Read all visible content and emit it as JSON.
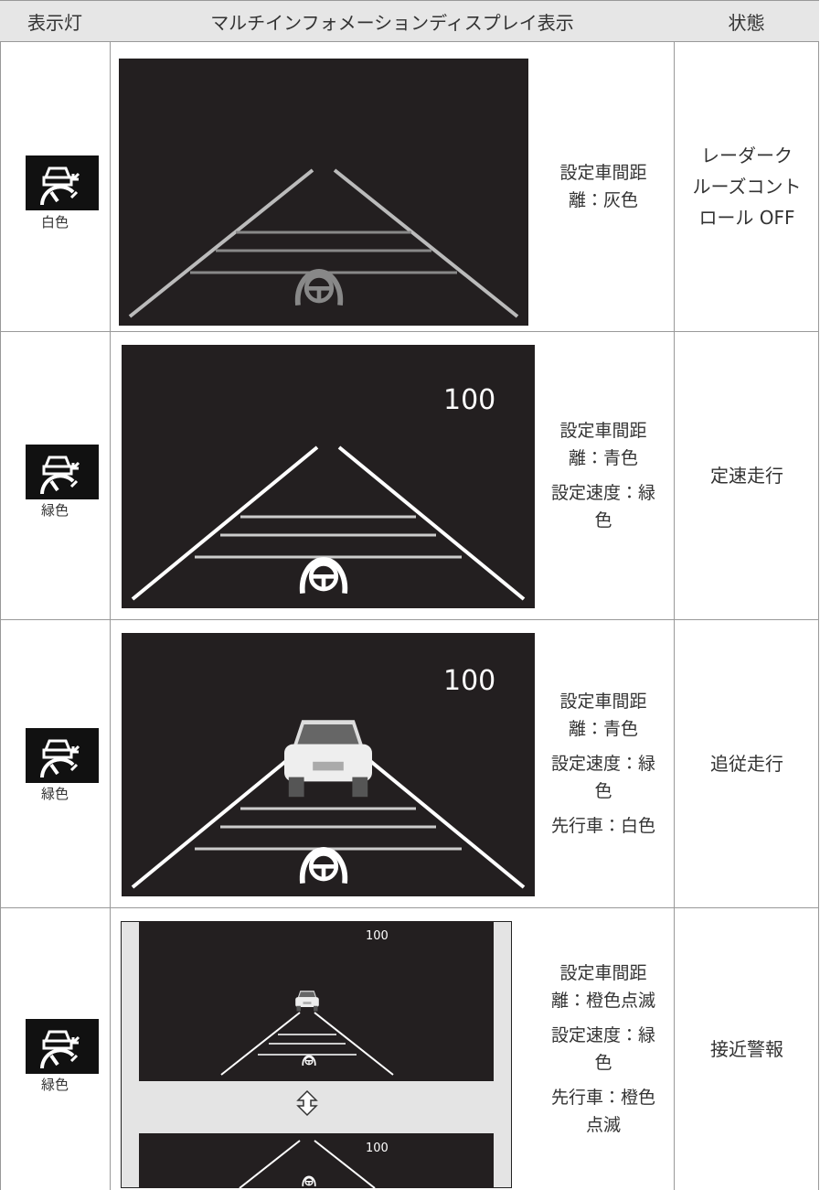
{
  "header": [
    "表示灯",
    "マルチインフォメーションディスプレイ表示",
    "状態"
  ],
  "rows": [
    {
      "indicator": "白色",
      "display_texts": [],
      "description": [
        [
          "設定車間距",
          "離：灰色"
        ]
      ],
      "state": [
        "レーダーク",
        "ルーズコント",
        "ロール OFF"
      ]
    },
    {
      "indicator": "緑色",
      "display_texts": [
        "100"
      ],
      "description": [
        [
          "設定車間距",
          "離：青色"
        ],
        [
          "設定速度：緑",
          "色"
        ]
      ],
      "state": [
        "定速走行"
      ]
    },
    {
      "indicator": "緑色",
      "display_texts": [
        "100"
      ],
      "description": [
        [
          "設定車間距",
          "離：青色"
        ],
        [
          "設定速度：緑",
          "色"
        ],
        [
          "先行車：白色"
        ]
      ],
      "state": [
        "追従走行"
      ]
    },
    {
      "indicator": "緑色",
      "display_texts": [
        "100",
        "100"
      ],
      "description": [
        [
          "設定車間距",
          "離：橙色点滅"
        ],
        [
          "設定速度：緑",
          "色"
        ],
        [
          "先行車：橙色",
          "点滅"
        ]
      ],
      "state": [
        "接近警報"
      ]
    }
  ]
}
